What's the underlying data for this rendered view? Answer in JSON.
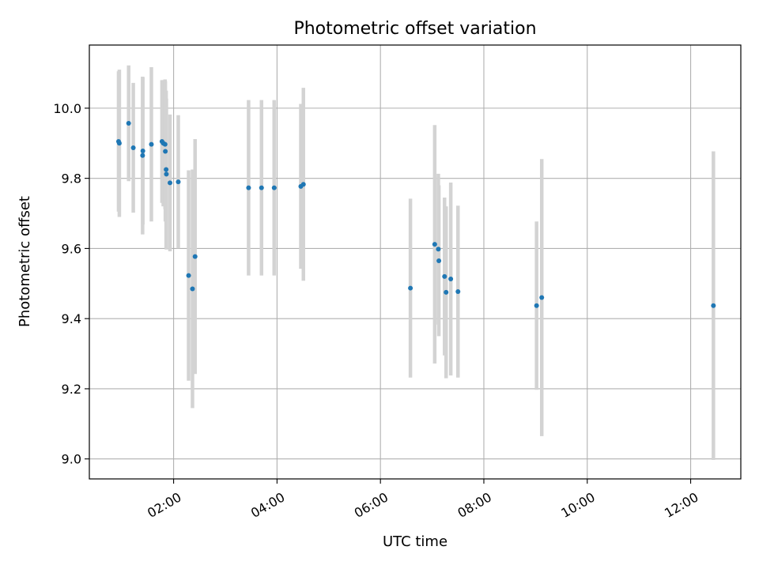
{
  "chart_data": {
    "type": "scatter",
    "title": "Photometric offset variation",
    "xlabel": "UTC time",
    "ylabel": "Photometric offset",
    "x_unit": "hours",
    "xlim": [
      0.37,
      12.97
    ],
    "ylim": [
      8.943,
      10.18
    ],
    "x_ticks": [
      {
        "value": 2,
        "label": "02:00"
      },
      {
        "value": 4,
        "label": "04:00"
      },
      {
        "value": 6,
        "label": "06:00"
      },
      {
        "value": 8,
        "label": "08:00"
      },
      {
        "value": 10,
        "label": "10:00"
      },
      {
        "value": 12,
        "label": "12:00"
      }
    ],
    "y_ticks": [
      {
        "value": 9.0,
        "label": "9.0"
      },
      {
        "value": 9.2,
        "label": "9.2"
      },
      {
        "value": 9.4,
        "label": "9.4"
      },
      {
        "value": 9.6,
        "label": "9.6"
      },
      {
        "value": 9.8,
        "label": "9.8"
      },
      {
        "value": 10.0,
        "label": "10.0"
      }
    ],
    "grid": true,
    "colors": {
      "marker": "#1f77b4",
      "errorbar": "#d3d3d3",
      "grid": "#b0b0b0"
    },
    "points": [
      {
        "x": 0.935,
        "y": 9.905,
        "err": 0.2
      },
      {
        "x": 0.95,
        "y": 9.9,
        "err": 0.21
      },
      {
        "x": 1.13,
        "y": 9.957,
        "err": 0.165
      },
      {
        "x": 1.22,
        "y": 9.887,
        "err": 0.185
      },
      {
        "x": 1.4,
        "y": 9.865,
        "err": 0.225
      },
      {
        "x": 1.405,
        "y": 9.878,
        "err": 0.21
      },
      {
        "x": 1.57,
        "y": 9.897,
        "err": 0.22
      },
      {
        "x": 1.775,
        "y": 9.905,
        "err": 0.175
      },
      {
        "x": 1.8,
        "y": 9.9,
        "err": 0.18
      },
      {
        "x": 1.835,
        "y": 9.897,
        "err": 0.185
      },
      {
        "x": 1.84,
        "y": 9.877,
        "err": 0.2
      },
      {
        "x": 1.855,
        "y": 9.825,
        "err": 0.225
      },
      {
        "x": 1.86,
        "y": 9.812,
        "err": 0.215
      },
      {
        "x": 1.93,
        "y": 9.787,
        "err": 0.195
      },
      {
        "x": 2.09,
        "y": 9.79,
        "err": 0.19
      },
      {
        "x": 2.29,
        "y": 9.523,
        "err": 0.3
      },
      {
        "x": 2.365,
        "y": 9.485,
        "err": 0.34
      },
      {
        "x": 2.415,
        "y": 9.577,
        "err": 0.335
      },
      {
        "x": 3.45,
        "y": 9.773,
        "err": 0.25
      },
      {
        "x": 3.7,
        "y": 9.773,
        "err": 0.25
      },
      {
        "x": 3.945,
        "y": 9.773,
        "err": 0.25
      },
      {
        "x": 4.46,
        "y": 9.777,
        "err": 0.235
      },
      {
        "x": 4.51,
        "y": 9.783,
        "err": 0.275
      },
      {
        "x": 6.58,
        "y": 9.487,
        "err": 0.255
      },
      {
        "x": 7.05,
        "y": 9.612,
        "err": 0.34
      },
      {
        "x": 7.12,
        "y": 9.598,
        "err": 0.215
      },
      {
        "x": 7.13,
        "y": 9.565,
        "err": 0.215
      },
      {
        "x": 7.24,
        "y": 9.52,
        "err": 0.225
      },
      {
        "x": 7.27,
        "y": 9.475,
        "err": 0.245
      },
      {
        "x": 7.36,
        "y": 9.513,
        "err": 0.275
      },
      {
        "x": 7.5,
        "y": 9.477,
        "err": 0.245
      },
      {
        "x": 9.02,
        "y": 9.437,
        "err": 0.24
      },
      {
        "x": 9.12,
        "y": 9.46,
        "err": 0.395
      },
      {
        "x": 12.44,
        "y": 9.437,
        "err": 0.44
      }
    ]
  }
}
